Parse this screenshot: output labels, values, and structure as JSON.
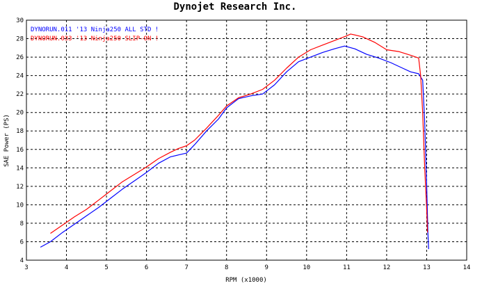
{
  "chart_data": {
    "type": "line",
    "title": "Dynojet  Research  Inc.",
    "xlabel": "RPM (x1000)",
    "ylabel": "SAE Power  (PS)",
    "xlim": [
      3,
      14
    ],
    "ylim": [
      4,
      30
    ],
    "xticks": [
      3,
      4,
      5,
      6,
      7,
      8,
      9,
      10,
      11,
      12,
      13,
      14
    ],
    "yticks": [
      4,
      6,
      8,
      10,
      12,
      14,
      16,
      18,
      20,
      22,
      24,
      26,
      28,
      30
    ],
    "grid": true,
    "legend_position": "top-left",
    "series": [
      {
        "name": "DYNORUN.011  '13 Ninja250 ALL STD !",
        "color": "#0000ff",
        "x": [
          3.35,
          3.6,
          3.9,
          4.2,
          4.5,
          4.8,
          5.1,
          5.4,
          5.7,
          6.0,
          6.3,
          6.6,
          6.8,
          7.0,
          7.2,
          7.5,
          7.8,
          8.0,
          8.3,
          8.6,
          8.9,
          9.2,
          9.5,
          9.8,
          10.1,
          10.4,
          10.7,
          10.95,
          11.2,
          11.5,
          11.8,
          12.1,
          12.4,
          12.6,
          12.8,
          12.9,
          12.95,
          13.0,
          13.03,
          13.05
        ],
        "y": [
          5.4,
          6.0,
          7.0,
          7.9,
          8.8,
          9.7,
          10.7,
          11.7,
          12.6,
          13.5,
          14.5,
          15.2,
          15.4,
          15.6,
          16.5,
          18.0,
          19.3,
          20.5,
          21.5,
          21.8,
          22.0,
          23.0,
          24.4,
          25.5,
          26.0,
          26.5,
          26.9,
          27.2,
          26.9,
          26.3,
          25.9,
          25.4,
          24.8,
          24.4,
          24.2,
          23.5,
          19.0,
          12.0,
          7.0,
          5.2
        ]
      },
      {
        "name": "DYNORUN.033  '13 Ninja250 SLIP-ON !",
        "color": "#ff0000",
        "x": [
          3.6,
          3.9,
          4.2,
          4.5,
          4.8,
          5.1,
          5.4,
          5.7,
          6.0,
          6.3,
          6.6,
          6.8,
          7.0,
          7.2,
          7.5,
          7.8,
          8.0,
          8.3,
          8.6,
          8.9,
          9.2,
          9.5,
          9.8,
          10.1,
          10.4,
          10.7,
          11.0,
          11.1,
          11.4,
          11.7,
          12.0,
          12.3,
          12.6,
          12.8,
          12.85,
          12.9,
          12.95,
          13.0,
          13.02
        ],
        "y": [
          6.9,
          7.8,
          8.7,
          9.5,
          10.5,
          11.5,
          12.5,
          13.3,
          14.1,
          15.0,
          15.7,
          16.1,
          16.4,
          17.0,
          18.3,
          19.7,
          20.7,
          21.6,
          22.0,
          22.5,
          23.5,
          24.8,
          26.0,
          26.8,
          27.3,
          27.8,
          28.3,
          28.5,
          28.2,
          27.6,
          26.8,
          26.6,
          26.2,
          25.9,
          24.0,
          20.0,
          14.0,
          9.5,
          7.0
        ]
      }
    ]
  }
}
